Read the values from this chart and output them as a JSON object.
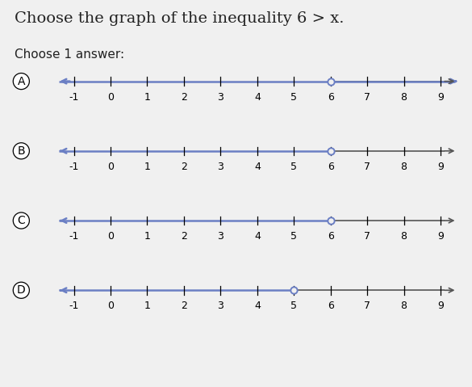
{
  "title": "Choose the graph of the inequality 6 > x.",
  "subtitle": "Choose 1 answer:",
  "background_color": "#f0f0f0",
  "number_lines": [
    {
      "label": "A",
      "open_circle": 6,
      "shade_direction": "right",
      "shade_color": "#6b7fc4",
      "base_color": "#555555"
    },
    {
      "label": "B",
      "open_circle": 6,
      "shade_direction": "left",
      "shade_color": "#6b7fc4",
      "base_color": "#555555"
    },
    {
      "label": "C",
      "open_circle": 6,
      "shade_direction": "left",
      "shade_color": "#6b7fc4",
      "base_color": "#555555"
    },
    {
      "label": "D",
      "open_circle": 5,
      "shade_direction": "left",
      "shade_color": "#6b7fc4",
      "base_color": "#555555"
    }
  ],
  "x_min": -1,
  "x_max": 9,
  "tick_values": [
    -1,
    0,
    1,
    2,
    3,
    4,
    5,
    6,
    7,
    8,
    9
  ],
  "circle_size": 6,
  "lw_shade": 1.8,
  "lw_base": 1.2,
  "font_size_title": 14,
  "font_size_subtitle": 11,
  "font_size_ticks": 9,
  "font_size_label": 10,
  "separator_color": "#aaaaaa",
  "text_color": "#222222"
}
